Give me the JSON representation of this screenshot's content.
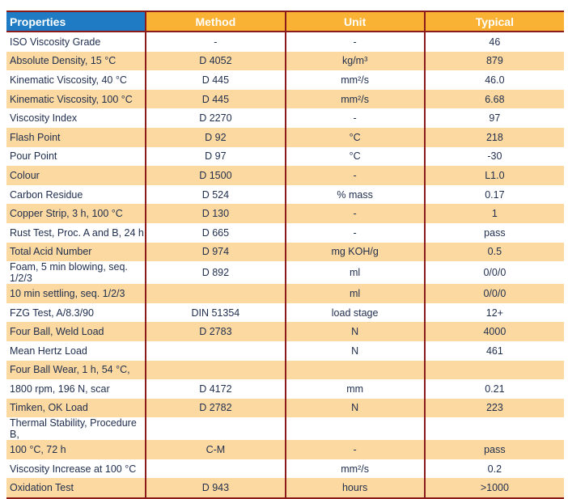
{
  "headers": [
    "Properties",
    "Method",
    "Unit",
    "Typical"
  ],
  "rows": [
    [
      "ISO Viscosity Grade",
      "-",
      "-",
      "46"
    ],
    [
      "Absolute Density, 15 °C",
      "D 4052",
      "kg/m³",
      "879"
    ],
    [
      "Kinematic Viscosity, 40 °C",
      "D 445",
      "mm²/s",
      "46.0"
    ],
    [
      "Kinematic Viscosity, 100 °C",
      "D 445",
      "mm²/s",
      "6.68"
    ],
    [
      "Viscosity Index",
      "D 2270",
      "-",
      "97"
    ],
    [
      "Flash Point",
      "D 92",
      "°C",
      "218"
    ],
    [
      "Pour Point",
      "D 97",
      "°C",
      "-30"
    ],
    [
      "Colour",
      "D 1500",
      "-",
      "L1.0"
    ],
    [
      "Carbon Residue",
      "D 524",
      "% mass",
      "0.17"
    ],
    [
      "Copper Strip, 3 h, 100 °C",
      "D 130",
      "-",
      "1"
    ],
    [
      "Rust Test, Proc. A and B, 24 h",
      "D 665",
      "-",
      "pass"
    ],
    [
      "Total Acid Number",
      "D 974",
      "mg KOH/g",
      "0.5"
    ],
    [
      "Foam, 5 min blowing, seq. 1/2/3",
      "D 892",
      "ml",
      "0/0/0"
    ],
    [
      "10 min settling, seq. 1/2/3",
      "",
      "ml",
      "0/0/0"
    ],
    [
      "FZG Test, A/8.3/90",
      "DIN 51354",
      "load stage",
      "12+"
    ],
    [
      "Four Ball, Weld Load",
      "D 2783",
      "N",
      "4000"
    ],
    [
      "Mean Hertz Load",
      "",
      "N",
      "461"
    ],
    [
      "Four Ball Wear, 1 h, 54 °C,",
      "",
      "",
      ""
    ],
    [
      "1800 rpm, 196 N, scar",
      "D 4172",
      "mm",
      "0.21"
    ],
    [
      "Timken, OK Load",
      "D 2782",
      "N",
      "223"
    ],
    [
      "Thermal Stability, Procedure B,",
      "",
      "",
      ""
    ],
    [
      "100 °C, 72 h",
      "C-M",
      "-",
      "pass"
    ],
    [
      "Viscosity Increase at 100 °C",
      "",
      "mm²/s",
      "0.2"
    ],
    [
      "Oxidation Test",
      "D 943",
      "hours",
      ">1000"
    ]
  ]
}
